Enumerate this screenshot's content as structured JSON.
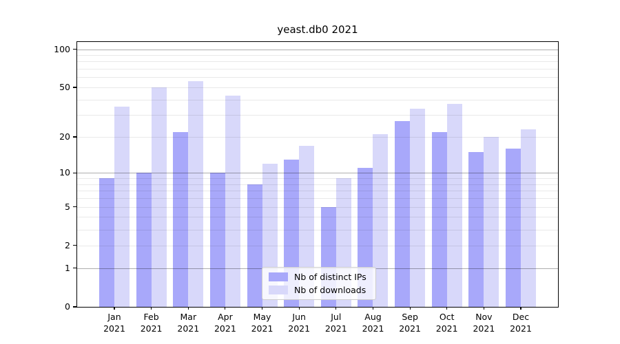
{
  "window": {
    "background": "#ffffff"
  },
  "chart_data": {
    "type": "bar",
    "title": "yeast.db0 2021",
    "categories": [
      "Jan",
      "Feb",
      "Mar",
      "Apr",
      "May",
      "Jun",
      "Jul",
      "Aug",
      "Sep",
      "Oct",
      "Nov",
      "Dec"
    ],
    "year_label": "2021",
    "series": [
      {
        "name": "Nb of distinct IPs",
        "color": "#a8a8fa",
        "values": [
          9,
          10,
          22,
          10,
          8,
          13,
          5,
          11,
          27,
          22,
          15,
          16
        ]
      },
      {
        "name": "Nb of downloads",
        "color": "#d8d8fa",
        "values": [
          35,
          50,
          56,
          43,
          12,
          17,
          9,
          21,
          34,
          37,
          20,
          23
        ]
      }
    ],
    "xlabel": "",
    "ylabel": "",
    "yscale": "log1p",
    "ylim": [
      0,
      114
    ],
    "yticks_labeled": [
      0,
      1,
      2,
      5,
      10,
      20,
      50,
      100
    ],
    "gridlines_major": [
      1,
      10,
      100
    ],
    "gridlines_minor": [
      2,
      3,
      4,
      5,
      6,
      7,
      8,
      9,
      20,
      30,
      40,
      50,
      60,
      70,
      80,
      90
    ],
    "grid": true,
    "legend_position": "lower center",
    "colors": {
      "spine": "#000000",
      "text": "#000000",
      "major_grid": "#b2b2b2",
      "minor_grid": "#e9e9e9",
      "legend_border": "#cccccc"
    }
  }
}
